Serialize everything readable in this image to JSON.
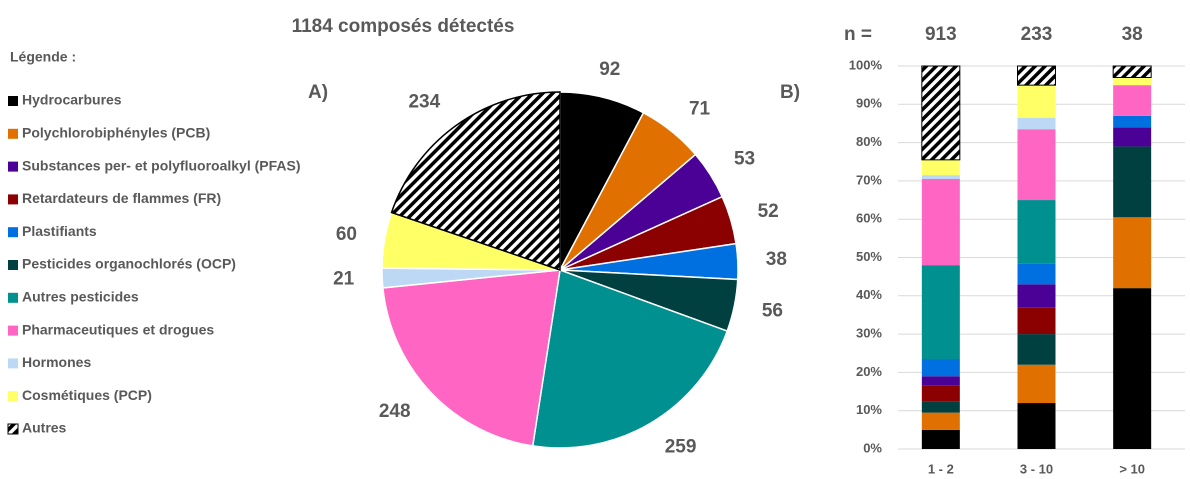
{
  "legend_title": "Légende :",
  "chart_data": [
    {
      "type": "pie",
      "title": "1184 composés détectés",
      "panel_label": "A)",
      "categories": [
        "Hydrocarbures",
        "Polychlorobiphényles (PCB)",
        "Substances per- et polyfluoroalkyl  (PFAS)",
        "Retardateurs de flammes (FR)",
        "Plastifiants",
        "Pesticides organochlorés (OCP)",
        "Autres pesticides",
        "Pharmaceutiques et drogues",
        "Hormones",
        "Cosmétiques (PCP)",
        "Autres"
      ],
      "values": [
        92,
        71,
        53,
        52,
        38,
        56,
        259,
        248,
        21,
        60,
        234
      ],
      "colors": [
        "#000000",
        "#e07000",
        "#4b0096",
        "#8b0000",
        "#0070e0",
        "#004040",
        "#009090",
        "#ff66c4",
        "#bcd8f5",
        "#ffff66",
        "#000000"
      ],
      "patterns": [
        "solid",
        "solid",
        "solid",
        "solid",
        "solid",
        "solid",
        "solid",
        "solid",
        "solid",
        "solid",
        "diagonal-stripes"
      ]
    },
    {
      "type": "stacked-bar",
      "panel_label": "B)",
      "n_label": "n =",
      "n": [
        913,
        233,
        38
      ],
      "categories": [
        "1 - 2",
        "3 - 10",
        "> 10"
      ],
      "ylim": [
        0,
        100
      ],
      "yticks": [
        {
          "value": 0,
          "label": "0%"
        },
        {
          "value": 10,
          "label": "10%"
        },
        {
          "value": 20,
          "label": "20%"
        },
        {
          "value": 30,
          "label": "30%"
        },
        {
          "value": 40,
          "label": "40%"
        },
        {
          "value": 50,
          "label": "50%"
        },
        {
          "value": 60,
          "label": "60%"
        },
        {
          "value": 70,
          "label": "70%"
        },
        {
          "value": 80,
          "label": "80%"
        },
        {
          "value": 90,
          "label": "90%"
        },
        {
          "value": 100,
          "label": "100%"
        }
      ],
      "grid": true,
      "series": [
        {
          "name": "Hydrocarbures",
          "color": "#000000",
          "values": [
            5,
            12,
            42
          ]
        },
        {
          "name": "Polychlorobiphényles (PCB)",
          "color": "#e07000",
          "values": [
            4.5,
            10,
            18.5
          ]
        },
        {
          "name": "Pesticides organochlorés (OCP)",
          "color": "#004040",
          "values": [
            3,
            8,
            18.5
          ]
        },
        {
          "name": "Retardateurs de flammes (FR)",
          "color": "#8b0000",
          "values": [
            4,
            7,
            0
          ]
        },
        {
          "name": "Substances per- et polyfluoroalkyl  (PFAS)",
          "color": "#4b0096",
          "values": [
            2.5,
            6,
            5
          ]
        },
        {
          "name": "Plastifiants",
          "color": "#0070e0",
          "values": [
            4.5,
            5.5,
            3
          ]
        },
        {
          "name": "Autres pesticides",
          "color": "#009090",
          "values": [
            24.5,
            16.5,
            0
          ]
        },
        {
          "name": "Pharmaceutiques et drogues",
          "color": "#ff66c4",
          "values": [
            22.5,
            18.5,
            8
          ]
        },
        {
          "name": "Hormones",
          "color": "#bcd8f5",
          "values": [
            1,
            3,
            0
          ]
        },
        {
          "name": "Cosmétiques (PCP)",
          "color": "#ffff66",
          "values": [
            4,
            8.5,
            2
          ]
        },
        {
          "name": "Autres",
          "color": "#000000",
          "pattern": "diagonal-stripes",
          "values": [
            24.5,
            5,
            3
          ]
        }
      ]
    }
  ]
}
